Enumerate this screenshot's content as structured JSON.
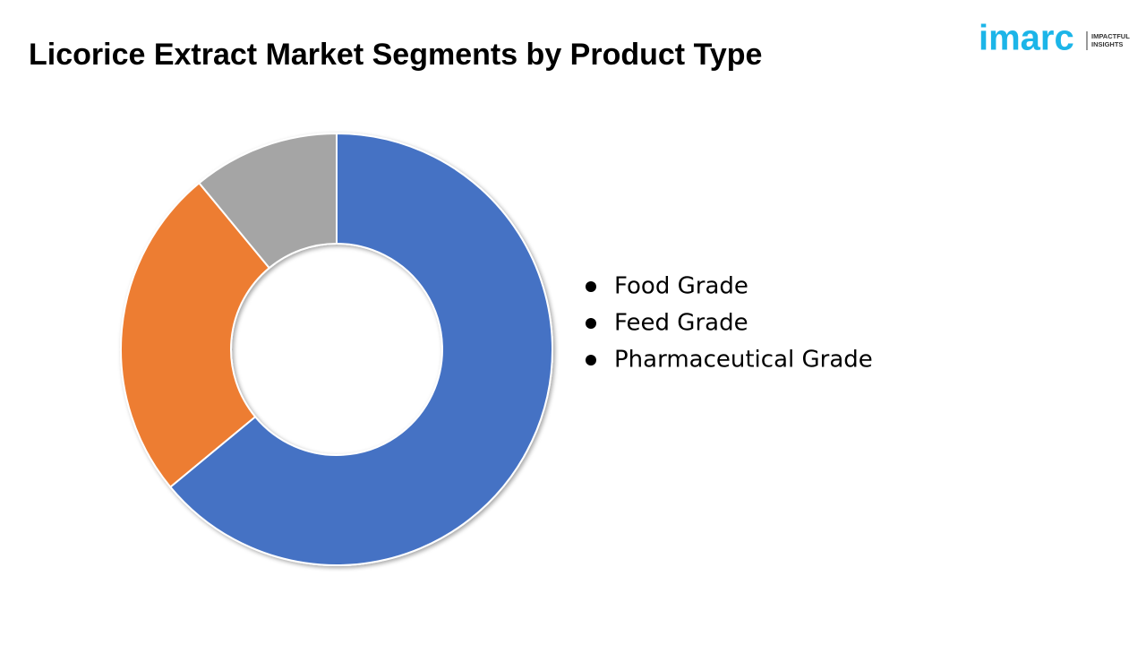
{
  "logo": {
    "name": "imarc",
    "tagline": [
      "IMPACTFUL",
      "INSIGHTS"
    ]
  },
  "chart_data": {
    "type": "donut",
    "title": "Licorice Extract Market Segments by Product Type",
    "categories": [
      "Food Grade",
      "Feed Grade",
      "Pharmaceutical Grade"
    ],
    "values": [
      64,
      25,
      11
    ],
    "colors": [
      "#4472c4",
      "#ed7d31",
      "#a5a5a5"
    ],
    "legend": "right"
  }
}
